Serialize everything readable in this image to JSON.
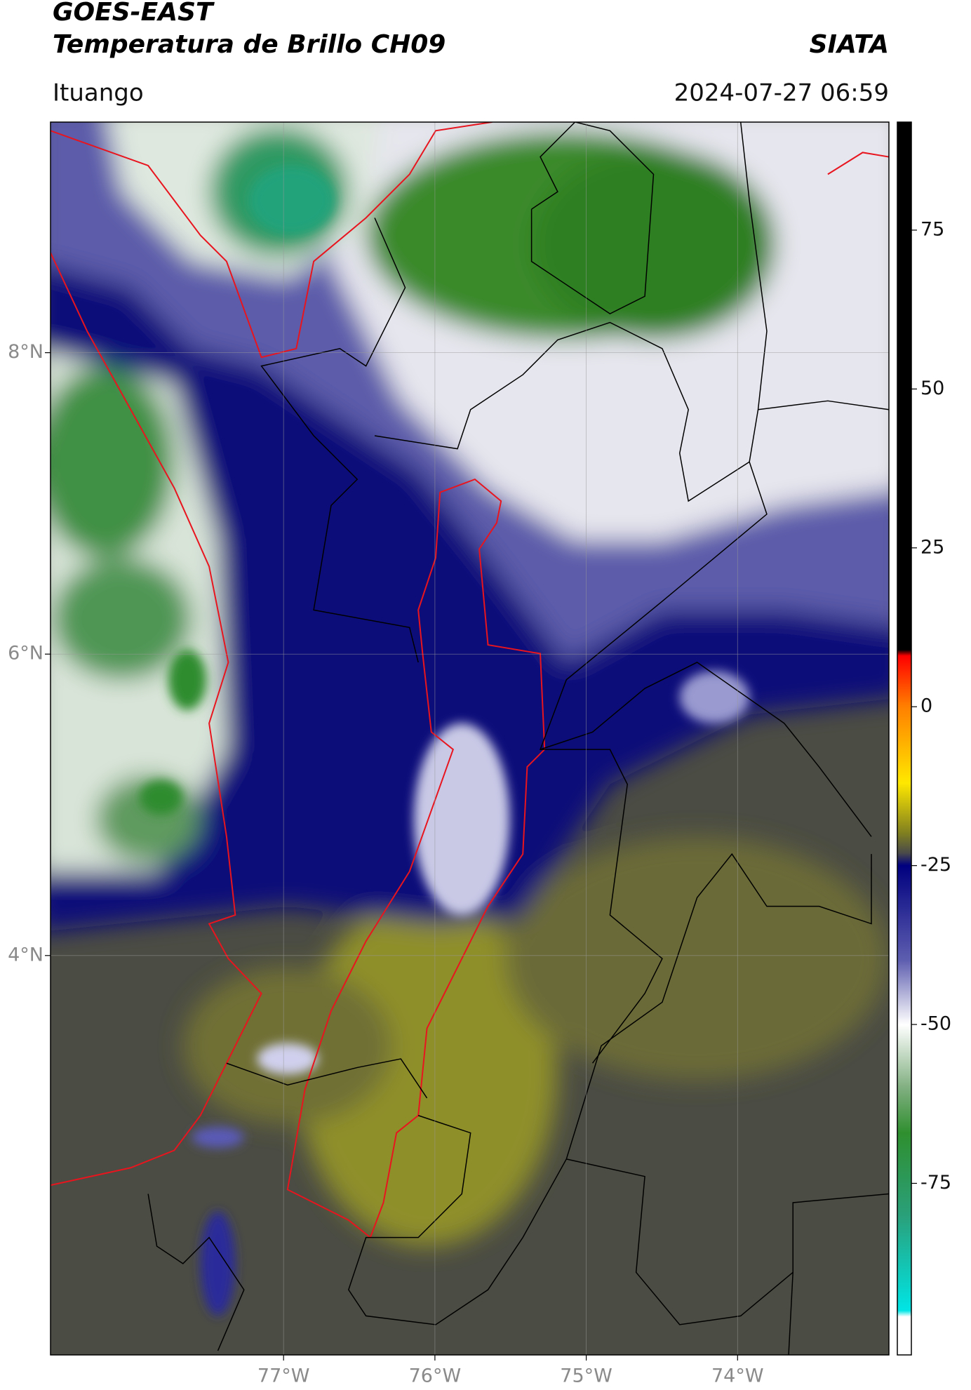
{
  "chart_data": {
    "type": "map",
    "title": "GOES-EAST",
    "subtitle": "Temperatura de Brillo CH09",
    "source": "SIATA",
    "location": "Ituango",
    "date": "2024-07-27 06:59",
    "xlim": [
      -78.54,
      -73.0
    ],
    "ylim": [
      1.35,
      9.53
    ],
    "xticks": [
      {
        "value": -77,
        "label": "77°W"
      },
      {
        "value": -76,
        "label": "76°W"
      },
      {
        "value": -75,
        "label": "75°W"
      },
      {
        "value": -74,
        "label": "74°W"
      }
    ],
    "yticks": [
      {
        "value": 8,
        "label": "8°N"
      },
      {
        "value": 6,
        "label": "6°N"
      },
      {
        "value": 4,
        "label": "4°N"
      }
    ],
    "grid": true,
    "colorbar": {
      "lim": [
        -102,
        92
      ],
      "ticks": [
        75,
        50,
        25,
        0,
        -25,
        -50,
        -75
      ]
    }
  }
}
